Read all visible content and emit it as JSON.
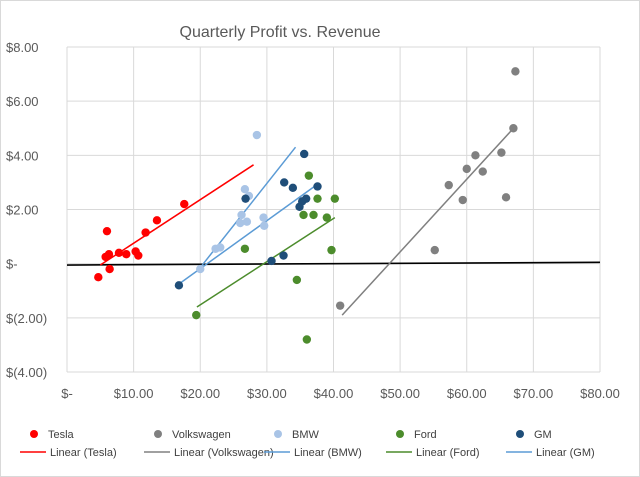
{
  "chart_data": {
    "type": "scatter",
    "title": "Quarterly Profit vs. Revenue",
    "xlabel": "",
    "ylabel": "",
    "xlim": [
      0,
      80
    ],
    "ylim": [
      -4,
      8
    ],
    "x_ticks": [
      0,
      10,
      20,
      30,
      40,
      50,
      60,
      70,
      80
    ],
    "x_tick_labels": [
      "$-",
      "$10.00",
      "$20.00",
      "$30.00",
      "$40.00",
      "$50.00",
      "$60.00",
      "$70.00",
      "$80.00"
    ],
    "y_ticks": [
      8,
      6,
      4,
      2,
      0,
      -2,
      -4
    ],
    "y_tick_labels": [
      "$8.00",
      "$6.00",
      "$4.00",
      "$2.00",
      "$-",
      "$(2.00)",
      "$(4.00)"
    ],
    "grid": true,
    "legend_position": "bottom",
    "series": [
      {
        "name": "Tesla",
        "color": "#ff0000",
        "points": [
          [
            4.7,
            -0.5
          ],
          [
            5.8,
            0.25
          ],
          [
            6.0,
            1.2
          ],
          [
            6.3,
            0.35
          ],
          [
            6.4,
            -0.2
          ],
          [
            7.8,
            0.4
          ],
          [
            8.9,
            0.35
          ],
          [
            10.3,
            0.45
          ],
          [
            10.7,
            0.3
          ],
          [
            11.8,
            1.15
          ],
          [
            13.5,
            1.6
          ],
          [
            17.6,
            2.2
          ]
        ],
        "trend": [
          [
            5.0,
            -0.05
          ],
          [
            28.0,
            3.65
          ]
        ]
      },
      {
        "name": "Volkswagen",
        "color": "#808080",
        "points": [
          [
            41.0,
            -1.55
          ],
          [
            55.2,
            0.5
          ],
          [
            57.3,
            2.9
          ],
          [
            59.4,
            2.35
          ],
          [
            60.0,
            3.5
          ],
          [
            61.3,
            4.0
          ],
          [
            62.4,
            3.4
          ],
          [
            65.2,
            4.1
          ],
          [
            65.9,
            2.45
          ],
          [
            67.0,
            5.0
          ],
          [
            67.3,
            7.1
          ]
        ],
        "trend": [
          [
            41.3,
            -1.9
          ],
          [
            67.2,
            5.05
          ]
        ]
      },
      {
        "name": "BMW",
        "color": "#a9c4e6",
        "points": [
          [
            20.0,
            -0.2
          ],
          [
            22.3,
            0.55
          ],
          [
            23.0,
            0.6
          ],
          [
            26.0,
            1.5
          ],
          [
            26.2,
            1.8
          ],
          [
            26.7,
            2.75
          ],
          [
            27.0,
            1.55
          ],
          [
            27.3,
            2.5
          ],
          [
            28.5,
            4.75
          ],
          [
            29.5,
            1.7
          ],
          [
            29.6,
            1.4
          ]
        ],
        "trend": [
          [
            19.5,
            -0.3
          ],
          [
            34.3,
            4.3
          ]
        ]
      },
      {
        "name": "Ford",
        "color": "#4c8c2c",
        "points": [
          [
            19.4,
            -1.9
          ],
          [
            26.7,
            0.55
          ],
          [
            34.5,
            -0.6
          ],
          [
            35.5,
            1.8
          ],
          [
            36.0,
            -2.8
          ],
          [
            36.3,
            3.25
          ],
          [
            37.0,
            1.8
          ],
          [
            37.6,
            2.4
          ],
          [
            39.0,
            1.7
          ],
          [
            39.7,
            0.5
          ],
          [
            40.2,
            2.4
          ]
        ],
        "trend": [
          [
            19.5,
            -1.6
          ],
          [
            40.2,
            1.7
          ]
        ]
      },
      {
        "name": "GM",
        "color": "#1f4e79",
        "points": [
          [
            16.8,
            -0.8
          ],
          [
            26.8,
            2.4
          ],
          [
            30.7,
            0.1
          ],
          [
            32.5,
            0.3
          ],
          [
            32.6,
            3.0
          ],
          [
            33.9,
            2.8
          ],
          [
            34.9,
            2.1
          ],
          [
            35.3,
            2.3
          ],
          [
            35.6,
            4.05
          ],
          [
            35.9,
            2.4
          ],
          [
            37.6,
            2.85
          ]
        ],
        "trend": [
          [
            16.8,
            -0.75
          ],
          [
            37.7,
            2.95
          ]
        ]
      }
    ],
    "overall_trend": {
      "color": "#000000",
      "points": [
        [
          0,
          -0.05
        ],
        [
          80,
          0.05
        ]
      ]
    }
  },
  "legend": {
    "markers": [
      "Tesla",
      "Volkswagen",
      "BMW",
      "Ford",
      "GM"
    ],
    "lines": [
      "Linear (Tesla)",
      "Linear (Volkswagen)",
      "Linear (BMW)",
      "Linear (Ford)",
      "Linear (GM)"
    ],
    "line_colors": [
      "#ff0000",
      "#808080",
      "#5b9bd5",
      "#4c8c2c",
      "#5b9bd5"
    ]
  }
}
